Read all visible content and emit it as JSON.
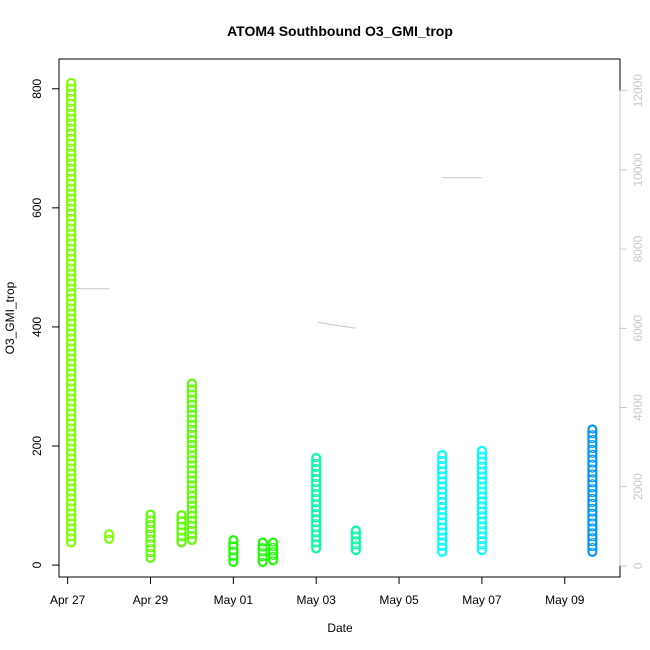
{
  "chart_data": {
    "type": "scatter",
    "title": "ATOM4 Southbound O3_GMI_trop",
    "xlabel": "Date",
    "ylabel": "O3_GMI_trop",
    "x_is_date": true,
    "xlim": [
      "2018-04-26T19:00",
      "2018-05-10T08:00"
    ],
    "ylim": [
      -20,
      850
    ],
    "y_ticks": [
      0,
      200,
      400,
      600,
      800
    ],
    "x_ticks": [
      {
        "date": "2018-04-27",
        "label": "Apr 27"
      },
      {
        "date": "2018-04-29",
        "label": "Apr 29"
      },
      {
        "date": "2018-05-01",
        "label": "May 01"
      },
      {
        "date": "2018-05-03",
        "label": "May 03"
      },
      {
        "date": "2018-05-05",
        "label": "May 05"
      },
      {
        "date": "2018-05-07",
        "label": "May 07"
      },
      {
        "date": "2018-05-09",
        "label": "May 09"
      }
    ],
    "y2": {
      "label": "",
      "ylim": [
        -280,
        12800
      ],
      "ticks": [
        0,
        2000,
        4000,
        6000,
        8000,
        10000,
        12000
      ],
      "color": "#c8c8c8"
    },
    "grid": false,
    "legend": "none",
    "series": [
      {
        "color": "#7fff00",
        "points": [
          {
            "x": "2018-04-27T02:00",
            "y_min": 38,
            "y_max": 810
          },
          {
            "x": "2018-04-28T00:00",
            "y_min": 44,
            "y_max": 52
          }
        ]
      },
      {
        "color": "#5cff00",
        "points": [
          {
            "x": "2018-04-29T00:00",
            "y_min": 12,
            "y_max": 85
          },
          {
            "x": "2018-04-29T18:00",
            "y_min": 38,
            "y_max": 84
          },
          {
            "x": "2018-04-30T00:00",
            "y_min": 42,
            "y_max": 305
          }
        ]
      },
      {
        "color": "#1aff00",
        "points": [
          {
            "x": "2018-05-01T00:00",
            "y_min": 5,
            "y_max": 42
          },
          {
            "x": "2018-05-01T17:00",
            "y_min": 5,
            "y_max": 38
          },
          {
            "x": "2018-05-01T23:00",
            "y_min": 8,
            "y_max": 38
          }
        ]
      },
      {
        "color": "#00ffa2",
        "points": [
          {
            "x": "2018-05-03T00:00",
            "y_min": 28,
            "y_max": 180
          },
          {
            "x": "2018-05-03T23:00",
            "y_min": 25,
            "y_max": 58
          }
        ]
      },
      {
        "color": "#00ffff",
        "points": [
          {
            "x": "2018-05-06T01:00",
            "y_min": 22,
            "y_max": 185
          },
          {
            "x": "2018-05-07T00:00",
            "y_min": 25,
            "y_max": 192
          }
        ]
      },
      {
        "color": "#0096ff",
        "points": [
          {
            "x": "2018-05-09T16:00",
            "y_min": 22,
            "y_max": 228
          }
        ]
      }
    ],
    "flight_track": [
      {
        "x": "2018-04-27T01:00",
        "y2": 7000,
        "x_end": "2018-04-28T00:00",
        "y2_end": 7000
      },
      {
        "x": "2018-05-03T01:00",
        "y2": 6150,
        "x_end": "2018-05-03T23:00",
        "y2_end": 6000
      },
      {
        "x": "2018-05-06T01:00",
        "y2": 9800,
        "x_end": "2018-05-07T00:00",
        "y2_end": 9800
      }
    ]
  }
}
